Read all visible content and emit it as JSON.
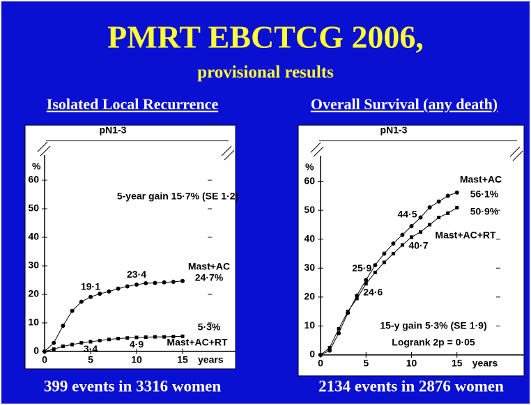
{
  "title": "PMRT EBCTCG 2006,",
  "subtitle": "provisional results",
  "chart_data": [
    {
      "type": "line",
      "heading": "Isolated Local Recurrence",
      "title": "pN1-3",
      "footer": "399 events in 3316 women",
      "annotations": [
        "5-year gain 15·7% (SE 1·2)"
      ],
      "xlabel": "years",
      "ylabel": "%",
      "x": [
        0,
        1,
        2,
        3,
        4,
        5,
        6,
        7,
        8,
        9,
        10,
        11,
        12,
        13,
        14,
        15
      ],
      "xlim": [
        0,
        20
      ],
      "xticks": [
        0,
        5,
        10,
        15
      ],
      "ylim": [
        0,
        70
      ],
      "yticks": [
        0,
        10,
        20,
        30,
        40,
        50,
        60
      ],
      "series": [
        {
          "name": "Mast+AC",
          "color": "#000000",
          "marker": "circle",
          "values": [
            0,
            3,
            9,
            14.2,
            17.4,
            19.1,
            20.2,
            21,
            22,
            22.8,
            23.4,
            23.9,
            24,
            24.2,
            24.4,
            24.7
          ],
          "value_labels": [
            null,
            null,
            null,
            null,
            null,
            "19·1",
            null,
            null,
            null,
            null,
            "23·4",
            null,
            null,
            null,
            null,
            "24·7%"
          ]
        },
        {
          "name": "Mast+AC+RT",
          "color": "#000000",
          "marker": "square",
          "values": [
            0,
            0.8,
            1.8,
            2.4,
            3,
            3.4,
            3.8,
            4.2,
            4.5,
            4.7,
            4.9,
            5,
            5.1,
            5.1,
            5.2,
            5.3
          ],
          "value_labels": [
            null,
            null,
            null,
            null,
            null,
            "3·4",
            null,
            null,
            null,
            null,
            "4·9",
            null,
            null,
            null,
            null,
            "5·3%"
          ]
        }
      ]
    },
    {
      "type": "line",
      "heading": "Overall Survival (any death)",
      "title": "pN1-3",
      "footer": "2134 events in 2876 women",
      "annotations": [
        "15-y gain 5·3% (SE 1·9)",
        "Logrank 2p = 0·05"
      ],
      "xlabel": "years",
      "ylabel": "%",
      "x": [
        0,
        1,
        2,
        3,
        4,
        5,
        6,
        7,
        8,
        9,
        10,
        11,
        12,
        13,
        14,
        15
      ],
      "xlim": [
        0,
        20
      ],
      "xticks": [
        0,
        5,
        10,
        15
      ],
      "ylim": [
        0,
        70
      ],
      "yticks": [
        0,
        10,
        20,
        30,
        40,
        50,
        60
      ],
      "series": [
        {
          "name": "Mast+AC",
          "color": "#000000",
          "marker": "circle",
          "values": [
            0,
            1.5,
            7.5,
            14.5,
            20.5,
            25.9,
            31,
            35,
            38.5,
            41.5,
            44.5,
            47.5,
            51,
            53,
            55,
            56.1
          ],
          "value_labels": [
            null,
            null,
            null,
            null,
            null,
            "25·9",
            null,
            null,
            null,
            null,
            "44·5",
            null,
            null,
            null,
            null,
            "56·1%"
          ]
        },
        {
          "name": "Mast+AC+RT",
          "color": "#000000",
          "marker": "square",
          "values": [
            0,
            2.5,
            9,
            15,
            19.5,
            24.6,
            28.5,
            32,
            35,
            38,
            40.7,
            42.5,
            45,
            47.5,
            49,
            50.9
          ],
          "value_labels": [
            null,
            null,
            null,
            null,
            null,
            "24·6",
            null,
            null,
            null,
            null,
            "40·7",
            null,
            null,
            null,
            null,
            "50·9%"
          ]
        }
      ]
    }
  ]
}
